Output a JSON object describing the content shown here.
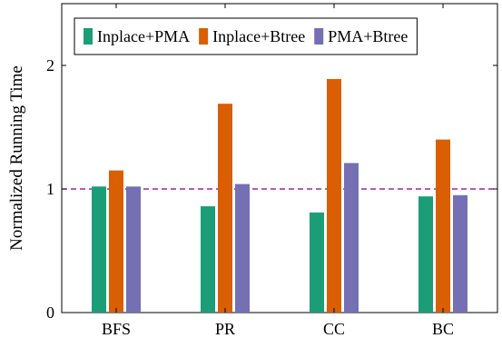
{
  "chart_data": {
    "type": "bar",
    "categories": [
      "BFS",
      "PR",
      "CC",
      "BC"
    ],
    "series": [
      {
        "name": "Inplace+PMA",
        "values": [
          1.02,
          0.86,
          0.81,
          0.94
        ],
        "color": "#1b9e77"
      },
      {
        "name": "Inplace+Btree",
        "values": [
          1.15,
          1.69,
          1.89,
          1.4
        ],
        "color": "#d95f02"
      },
      {
        "name": "PMA+Btree",
        "values": [
          1.02,
          1.04,
          1.21,
          0.95
        ],
        "color": "#7570b3"
      }
    ],
    "title": "",
    "xlabel": "",
    "ylabel": "Normalized Running Time",
    "ylim": [
      0,
      2.5
    ],
    "yticks": [
      0,
      1,
      2
    ],
    "reference_line": {
      "y": 1,
      "style": "dashed",
      "color": "#800080"
    },
    "legend": {
      "placement": "top",
      "columns": 3
    },
    "grid": false
  }
}
